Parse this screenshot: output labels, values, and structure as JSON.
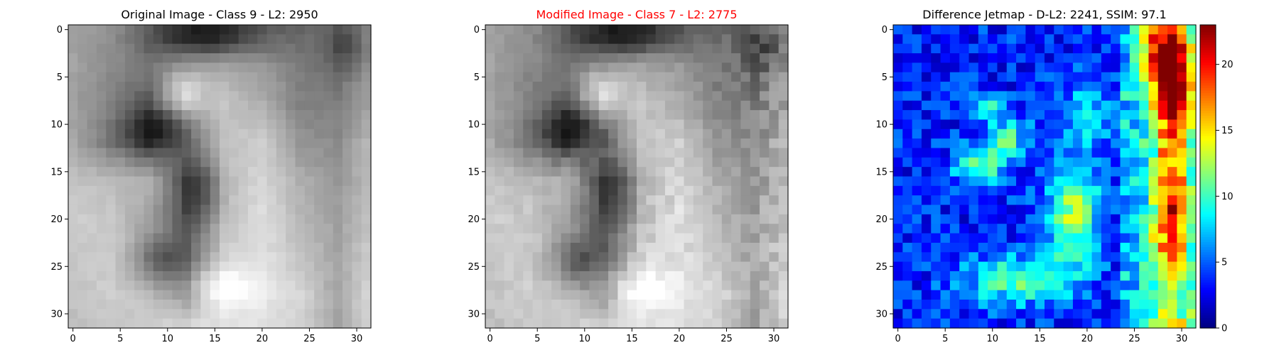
{
  "chart_data": [
    {
      "type": "heatmap",
      "title": "Original Image - Class 9 - L2: 2950",
      "title_color": "#000000",
      "colormap": "gray",
      "grid": false,
      "xlim": [
        -0.5,
        31.5
      ],
      "ylim": [
        31.5,
        -0.5
      ],
      "xticks": [
        0,
        5,
        10,
        15,
        20,
        25,
        30
      ],
      "yticks": [
        0,
        5,
        10,
        15,
        20,
        25,
        30
      ],
      "control_points": [
        [
          0,
          0,
          160
        ],
        [
          0,
          4,
          150
        ],
        [
          0,
          8,
          135
        ],
        [
          0,
          12,
          150
        ],
        [
          0,
          16,
          130
        ],
        [
          0,
          20,
          115
        ],
        [
          0,
          24,
          105
        ],
        [
          0,
          28,
          120
        ],
        [
          0,
          31,
          150
        ],
        [
          4,
          0,
          165
        ],
        [
          4,
          4,
          140
        ],
        [
          4,
          8,
          120
        ],
        [
          4,
          12,
          150
        ],
        [
          4,
          16,
          175
        ],
        [
          4,
          20,
          155
        ],
        [
          4,
          24,
          125
        ],
        [
          4,
          28,
          115
        ],
        [
          4,
          31,
          150
        ],
        [
          8,
          0,
          160
        ],
        [
          8,
          4,
          130
        ],
        [
          8,
          8,
          85
        ],
        [
          8,
          12,
          175
        ],
        [
          8,
          16,
          195
        ],
        [
          8,
          20,
          175
        ],
        [
          8,
          24,
          130
        ],
        [
          8,
          28,
          125
        ],
        [
          8,
          31,
          160
        ],
        [
          12,
          0,
          170
        ],
        [
          12,
          4,
          120
        ],
        [
          12,
          8,
          80
        ],
        [
          12,
          12,
          120
        ],
        [
          12,
          16,
          195
        ],
        [
          12,
          20,
          205
        ],
        [
          12,
          24,
          150
        ],
        [
          12,
          28,
          140
        ],
        [
          12,
          31,
          180
        ],
        [
          16,
          0,
          195
        ],
        [
          16,
          4,
          190
        ],
        [
          16,
          8,
          175
        ],
        [
          16,
          12,
          90
        ],
        [
          16,
          16,
          190
        ],
        [
          16,
          20,
          215
        ],
        [
          16,
          24,
          175
        ],
        [
          16,
          28,
          150
        ],
        [
          16,
          31,
          185
        ],
        [
          20,
          0,
          205
        ],
        [
          20,
          4,
          200
        ],
        [
          20,
          8,
          165
        ],
        [
          20,
          12,
          95
        ],
        [
          20,
          16,
          195
        ],
        [
          20,
          20,
          220
        ],
        [
          20,
          24,
          185
        ],
        [
          20,
          28,
          160
        ],
        [
          20,
          31,
          190
        ],
        [
          24,
          0,
          200
        ],
        [
          24,
          4,
          205
        ],
        [
          24,
          8,
          165
        ],
        [
          24,
          12,
          100
        ],
        [
          24,
          16,
          205
        ],
        [
          24,
          20,
          225
        ],
        [
          24,
          24,
          195
        ],
        [
          24,
          28,
          165
        ],
        [
          24,
          31,
          200
        ],
        [
          28,
          0,
          195
        ],
        [
          28,
          4,
          205
        ],
        [
          28,
          8,
          190
        ],
        [
          28,
          12,
          140
        ],
        [
          28,
          16,
          235
        ],
        [
          28,
          20,
          230
        ],
        [
          28,
          24,
          215
        ],
        [
          28,
          28,
          165
        ],
        [
          28,
          31,
          210
        ],
        [
          31,
          0,
          190
        ],
        [
          31,
          4,
          200
        ],
        [
          31,
          8,
          205
        ],
        [
          31,
          12,
          210
        ],
        [
          31,
          16,
          225
        ],
        [
          31,
          20,
          225
        ],
        [
          31,
          24,
          210
        ],
        [
          31,
          28,
          165
        ],
        [
          31,
          31,
          210
        ]
      ],
      "features": [
        {
          "kind": "dark_blob",
          "row": 0.5,
          "col": 13.5,
          "sigma_row": 1.6,
          "sigma_col": 4.0,
          "amount": -120
        },
        {
          "kind": "light_blob",
          "row": 6.5,
          "col": 11.5,
          "sigma_row": 1.6,
          "sigma_col": 1.6,
          "amount": 55
        },
        {
          "kind": "dark_blob",
          "row": 10.5,
          "col": 9.0,
          "sigma_row": 1.5,
          "sigma_col": 2.5,
          "amount": -70
        },
        {
          "kind": "dark_blob",
          "row": 17.0,
          "col": 13.5,
          "sigma_row": 2.5,
          "sigma_col": 1.6,
          "amount": -60
        },
        {
          "kind": "dark_blob",
          "row": 24.5,
          "col": 9.0,
          "sigma_row": 1.8,
          "sigma_col": 1.8,
          "amount": -60
        },
        {
          "kind": "light_blob",
          "row": 27.0,
          "col": 15.0,
          "sigma_row": 1.5,
          "sigma_col": 3.0,
          "amount": 40
        },
        {
          "kind": "dark_blob",
          "row": 1.5,
          "col": 29.0,
          "sigma_row": 2.0,
          "sigma_col": 1.6,
          "amount": -55
        }
      ]
    },
    {
      "type": "heatmap",
      "title": "Modified Image - Class 7 - L2: 2775",
      "title_color": "#ff0000",
      "colormap": "gray",
      "grid": false,
      "xlim": [
        -0.5,
        31.5
      ],
      "ylim": [
        31.5,
        -0.5
      ],
      "xticks": [
        0,
        5,
        10,
        15,
        20,
        25,
        30
      ],
      "yticks": [
        0,
        5,
        10,
        15,
        20,
        25,
        30
      ],
      "derived_from": "Original Image - Class 9 - L2: 2950",
      "difference_scale": 0.9
    },
    {
      "type": "heatmap",
      "title": "Difference Jetmap - D-L2: 2241, SSIM: 97.1",
      "title_color": "#000000",
      "colormap": "jet",
      "grid": false,
      "xlim": [
        -0.5,
        31.5
      ],
      "ylim": [
        31.5,
        -0.5
      ],
      "xticks": [
        0,
        5,
        10,
        15,
        20,
        25,
        30
      ],
      "yticks": [
        0,
        5,
        10,
        15,
        20,
        25,
        30
      ],
      "vmin": 0,
      "vmax": 23,
      "colorbar_ticks": [
        0,
        5,
        10,
        15,
        20
      ],
      "base_level": 3.5,
      "regions": [
        {
          "row": 11.5,
          "col": 11.5,
          "sigma_row": 1.5,
          "sigma_col": 1.5,
          "amount": 7
        },
        {
          "row": 14.5,
          "col": 8.5,
          "sigma_row": 1.5,
          "sigma_col": 1.8,
          "amount": 7
        },
        {
          "row": 8.0,
          "col": 9.5,
          "sigma_row": 1.0,
          "sigma_col": 1.0,
          "amount": 5
        },
        {
          "row": 19.5,
          "col": 18.5,
          "sigma_row": 4.0,
          "sigma_col": 2.0,
          "amount": 9
        },
        {
          "row": 26.5,
          "col": 12.5,
          "sigma_row": 1.8,
          "sigma_col": 4.0,
          "amount": 7
        },
        {
          "row": 9.0,
          "col": 20.0,
          "sigma_row": 2.5,
          "sigma_col": 2.5,
          "amount": 4
        },
        {
          "row": 2.5,
          "col": 27.0,
          "sigma_row": 3.0,
          "sigma_col": 1.2,
          "amount": 7
        }
      ],
      "column_bands": [
        {
          "col": 24,
          "amount": 3.0
        },
        {
          "col": 25,
          "amount": 4.0
        },
        {
          "col": 26,
          "amount": 5.0
        },
        {
          "col": 27,
          "amount": 8.0
        },
        {
          "col": 28,
          "amount": 11.0
        },
        {
          "col": 29,
          "amount": 13.0
        },
        {
          "col": 30,
          "amount": 10.5
        },
        {
          "col": 31,
          "amount": 7.0
        }
      ],
      "hotspots": [
        {
          "row": 5.5,
          "col": 29.5,
          "sigma_row": 3.5,
          "sigma_col": 1.4,
          "amount": 9
        },
        {
          "row": 20.5,
          "col": 29.0,
          "sigma_row": 3.0,
          "sigma_col": 1.0,
          "amount": 5
        },
        {
          "row": 27.5,
          "col": 29.0,
          "sigma_row": 2.0,
          "sigma_col": 1.5,
          "amount": -4
        }
      ]
    }
  ]
}
